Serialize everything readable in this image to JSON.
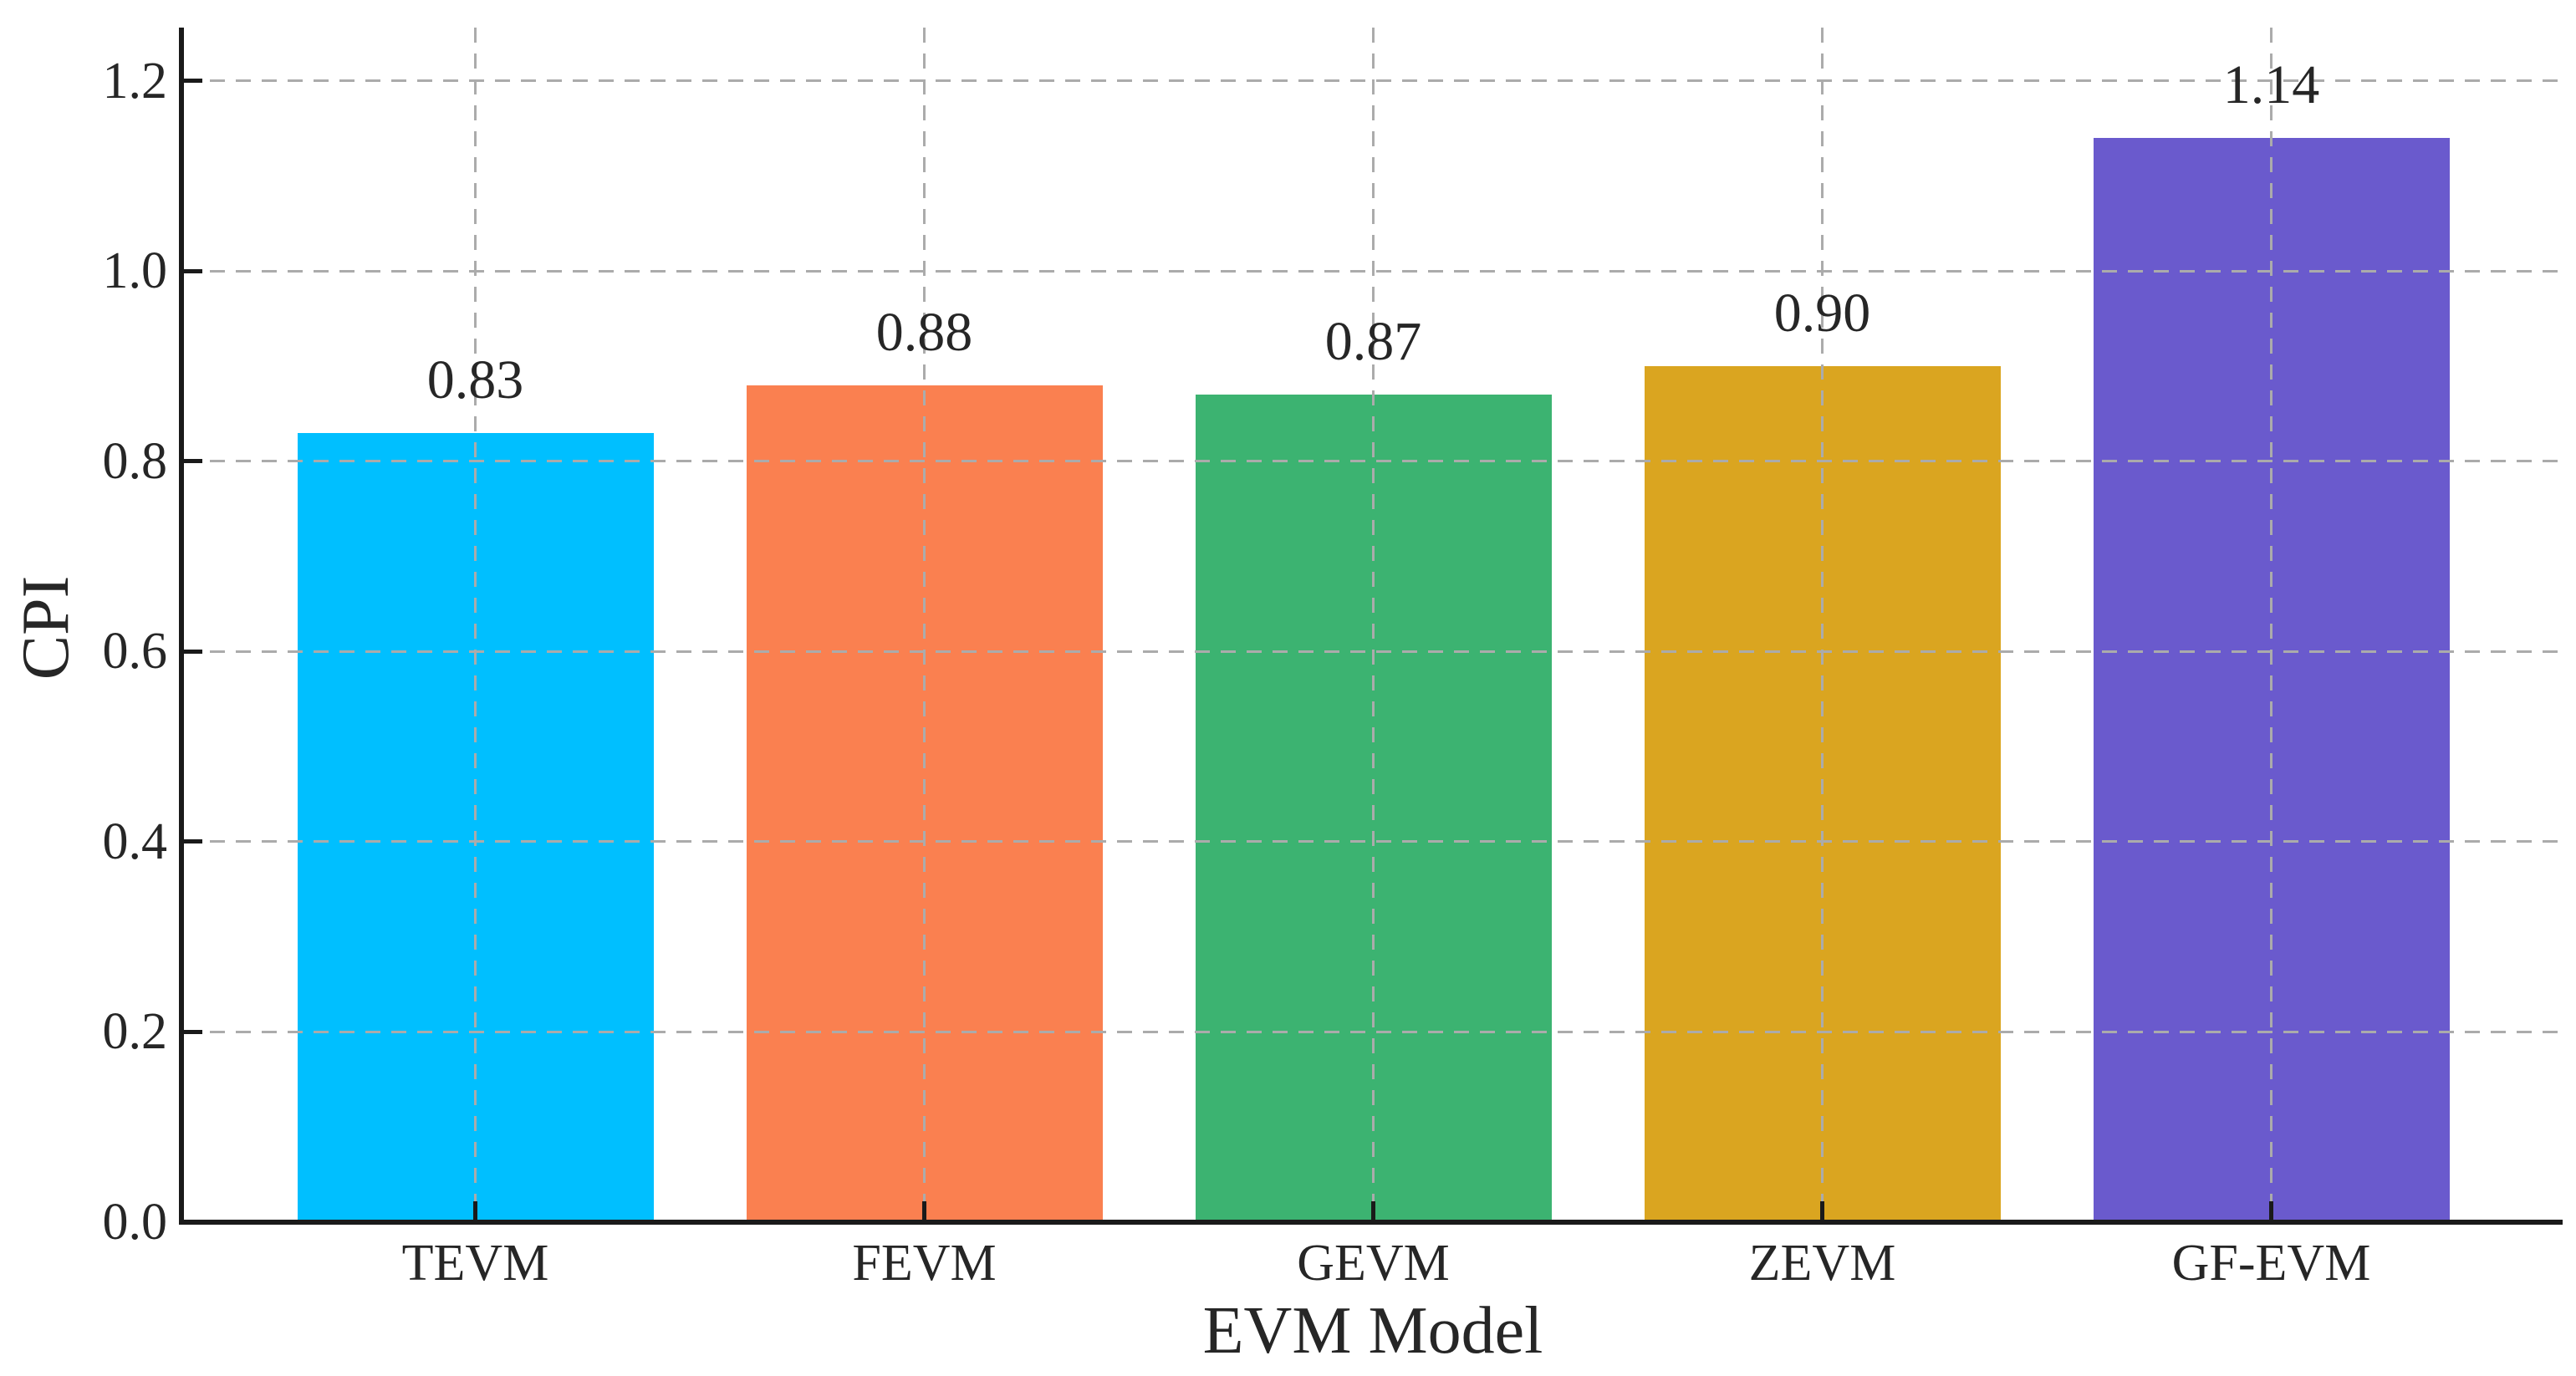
{
  "chart_data": {
    "type": "bar",
    "categories": [
      "TEVM",
      "FEVM",
      "GEVM",
      "ZEVM",
      "GF-EVM"
    ],
    "values": [
      0.83,
      0.88,
      0.87,
      0.9,
      1.14
    ],
    "bar_labels": [
      "0.83",
      "0.88",
      "0.87",
      "0.90",
      "1.14"
    ],
    "bar_colors": [
      "#00BFFF",
      "#FA8050",
      "#3CB371",
      "#DAA520",
      "#6A5ACD"
    ],
    "title": "",
    "xlabel": "EVM Model",
    "ylabel": "CPI",
    "ylim": [
      0,
      1.256
    ],
    "yticks": [
      0.0,
      0.2,
      0.4,
      0.6,
      0.8,
      1.0,
      1.2
    ],
    "ytick_labels": [
      "0.0",
      "0.2",
      "0.4",
      "0.6",
      "0.8",
      "1.0",
      "1.2"
    ],
    "grid": "dashed horizontal lines at y ticks and dashed vertical lines at category centers, drawn over bars",
    "grid_color": "#ABABAB",
    "axis_color": "#1A1A1A",
    "text_color": "#262626",
    "background": "#FFFFFF",
    "legend": "none"
  }
}
